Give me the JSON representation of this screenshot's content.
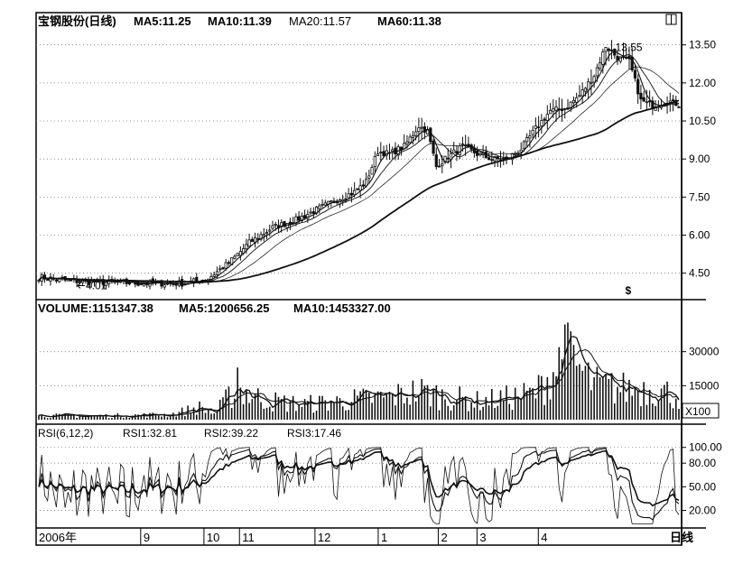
{
  "chart_data": [
    {
      "type": "candlestick",
      "header": {
        "title": "宝钢股份(日线)",
        "ma5": "MA5:11.25",
        "ma10": "MA10:11.39",
        "ma20": "MA20:11.57",
        "ma60": "MA60:11.38"
      },
      "y_ticks": [
        "13.50",
        "12.00",
        "10.50",
        "9.00",
        "7.50",
        "6.00",
        "4.50"
      ],
      "y_tick_values": [
        13.5,
        12.0,
        10.5,
        9.0,
        7.5,
        6.0,
        4.5
      ],
      "ylim": [
        3.6,
        14.2
      ],
      "annotations": {
        "high": "13.55",
        "low": "4.01",
        "marker": "$"
      },
      "close_path": [
        [
          0,
          4.35
        ],
        [
          10,
          4.2
        ],
        [
          20,
          4.15
        ],
        [
          35,
          4.1
        ],
        [
          50,
          4.1
        ],
        [
          58,
          4.3
        ],
        [
          65,
          4.9
        ],
        [
          72,
          5.7
        ],
        [
          80,
          6.3
        ],
        [
          88,
          6.6
        ],
        [
          95,
          7.0
        ],
        [
          102,
          7.4
        ],
        [
          108,
          7.7
        ],
        [
          112,
          8.1
        ],
        [
          116,
          9.3
        ],
        [
          120,
          9.2
        ],
        [
          125,
          9.5
        ],
        [
          130,
          10.3
        ],
        [
          133,
          10.1
        ],
        [
          136,
          8.7
        ],
        [
          140,
          9.1
        ],
        [
          145,
          9.5
        ],
        [
          150,
          9.2
        ],
        [
          155,
          9.0
        ],
        [
          160,
          9.0
        ],
        [
          165,
          9.4
        ],
        [
          170,
          10.2
        ],
        [
          175,
          10.9
        ],
        [
          180,
          11.0
        ],
        [
          185,
          11.5
        ],
        [
          190,
          12.3
        ],
        [
          194,
          13.45
        ],
        [
          198,
          13.0
        ],
        [
          202,
          12.85
        ],
        [
          206,
          11.3
        ],
        [
          210,
          11.1
        ],
        [
          215,
          11.3
        ],
        [
          220,
          11.1
        ]
      ]
    },
    {
      "type": "bar",
      "header": {
        "volume": "VOLUME:1151347.38",
        "ma5": "MA5:1200656.25",
        "ma10": "MA10:1453327.00"
      },
      "y_ticks": [
        "30000",
        "15000"
      ],
      "y_tick_values": [
        30000,
        15000
      ],
      "ylim": [
        0,
        45000
      ],
      "unit_badge": "X100",
      "volume_path": [
        [
          0,
          2000
        ],
        [
          20,
          1800
        ],
        [
          45,
          2500
        ],
        [
          55,
          6000
        ],
        [
          60,
          3000
        ],
        [
          68,
          16000
        ],
        [
          72,
          12000
        ],
        [
          80,
          9000
        ],
        [
          90,
          7500
        ],
        [
          100,
          8500
        ],
        [
          110,
          10000
        ],
        [
          120,
          11000
        ],
        [
          130,
          14000
        ],
        [
          140,
          11000
        ],
        [
          150,
          9000
        ],
        [
          160,
          10500
        ],
        [
          170,
          13000
        ],
        [
          176,
          24000
        ],
        [
          180,
          32000
        ],
        [
          184,
          26000
        ],
        [
          190,
          17000
        ],
        [
          200,
          15000
        ],
        [
          210,
          15500
        ],
        [
          220,
          11000
        ]
      ]
    },
    {
      "type": "line",
      "header": {
        "rsi": "RSI(6,12,2)",
        "rsi1": "RSI1:32.81",
        "rsi2": "RSI2:39.22",
        "rsi3": "RSI3:17.46"
      },
      "y_ticks": [
        "100.00",
        "80.00",
        "50.00",
        "20.00"
      ],
      "y_tick_values": [
        100,
        80,
        50,
        20
      ],
      "ylim": [
        0,
        110
      ]
    }
  ],
  "x_axis": {
    "labels": [
      {
        "text": "2006年",
        "pos": 0.0
      },
      {
        "text": "9",
        "pos": 0.162
      },
      {
        "text": "10",
        "pos": 0.26
      },
      {
        "text": "11",
        "pos": 0.315
      },
      {
        "text": "12",
        "pos": 0.432
      },
      {
        "text": "1",
        "pos": 0.53
      },
      {
        "text": "2",
        "pos": 0.623
      },
      {
        "text": "3",
        "pos": 0.683
      },
      {
        "text": "4",
        "pos": 0.778
      }
    ],
    "footer": "日线",
    "n_bars": 220
  },
  "colors": {
    "line": "#111111",
    "grid": "#777777",
    "text": "#000000",
    "background": "#ffffff"
  },
  "icons": {
    "toggle": "window-toggle-icon"
  }
}
